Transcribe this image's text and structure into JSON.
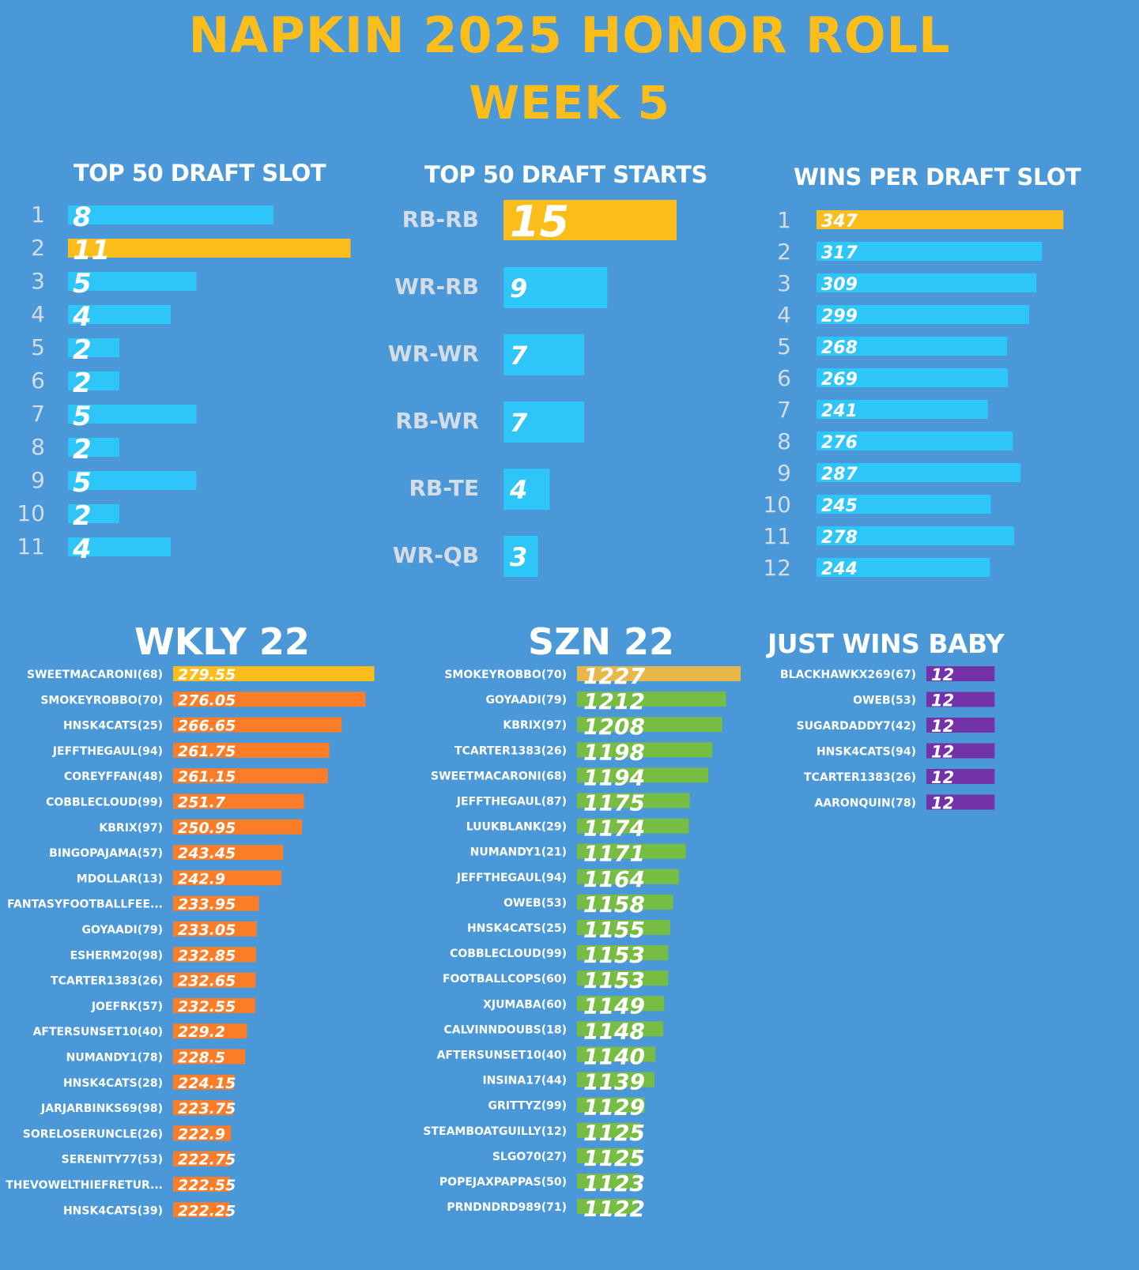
{
  "header": {
    "title": "NAPKIN 2025 HONOR ROLL",
    "week": "WEEK 5"
  },
  "colors": {
    "background": "#4a98d8",
    "gold": "#fbbd1a",
    "cyan": "#2ec5f8",
    "orange": "#fb7d28",
    "green": "#77bd44",
    "purple": "#7332a8",
    "sand": "#e9b84a"
  },
  "chart_data": [
    {
      "type": "bar",
      "title": "TOP 50 DRAFT SLOT",
      "categories": [
        "1",
        "2",
        "3",
        "4",
        "5",
        "6",
        "7",
        "8",
        "9",
        "10",
        "11"
      ],
      "values": [
        8,
        11,
        5,
        4,
        2,
        2,
        5,
        2,
        5,
        2,
        4
      ],
      "highlight_index": 1
    },
    {
      "type": "bar",
      "title": "TOP 50 DRAFT STARTS",
      "categories": [
        "RB-RB",
        "WR-RB",
        "WR-WR",
        "RB-WR",
        "RB-TE",
        "WR-QB"
      ],
      "values": [
        15,
        9,
        7,
        7,
        4,
        3
      ],
      "highlight_index": 0
    },
    {
      "type": "bar",
      "title": "WINS PER DRAFT SLOT",
      "categories": [
        "1",
        "2",
        "3",
        "4",
        "5",
        "6",
        "7",
        "8",
        "9",
        "10",
        "11",
        "12"
      ],
      "values": [
        347,
        317,
        309,
        299,
        268,
        269,
        241,
        276,
        287,
        245,
        278,
        244
      ],
      "highlight_index": 0
    },
    {
      "type": "bar",
      "title": "WKLY 22",
      "categories": [
        "SWEETMACARONI(68)",
        "SMOKEYROBBO(70)",
        "HNSK4CATS(25)",
        "JEFFTHEGAUL(94)",
        "COREYFFAN(48)",
        "COBBLECLOUD(99)",
        "KBRIX(97)",
        "BINGOPAJAMA(57)",
        "MDOLLAR(13)",
        "FANTASYFOOTBALLFEE...",
        "GOYAADI(79)",
        "ESHERM20(98)",
        "TCARTER1383(26)",
        "JOEFRK(57)",
        "AFTERSUNSET10(40)",
        "NUMANDY1(78)",
        "HNSK4CATS(28)",
        "JARJARBINKS69(98)",
        "SORELOSERUNCLE(26)",
        "SERENITY77(53)",
        "THEVOWELTHIEFRETUR...",
        "HNSK4CATS(39)"
      ],
      "labels": [
        "279.55",
        "276.05",
        "266.65",
        "261.75",
        "261.15",
        "251.7",
        "250.95",
        "243.45",
        "242.9",
        "233.95",
        "233.05",
        "232.85",
        "232.65",
        "232.55",
        "229.2",
        "228.5",
        "224.15",
        "223.75",
        "222.9",
        "222.75",
        "222.55",
        "222.25"
      ],
      "values": [
        279.55,
        276.05,
        266.65,
        261.75,
        261.15,
        251.7,
        250.95,
        243.45,
        242.9,
        233.95,
        233.05,
        232.85,
        232.65,
        232.55,
        229.2,
        228.5,
        224.15,
        223.75,
        222.9,
        222.75,
        222.55,
        222.25
      ],
      "highlight_index": 0
    },
    {
      "type": "bar",
      "title": "SZN 22",
      "categories": [
        "SMOKEYROBBO(70)",
        "GOYAADI(79)",
        "KBRIX(97)",
        "TCARTER1383(26)",
        "SWEETMACARONI(68)",
        "JEFFTHEGAUL(87)",
        "LUUKBLANK(29)",
        "NUMANDY1(21)",
        "JEFFTHEGAUL(94)",
        "OWEB(53)",
        "HNSK4CATS(25)",
        "COBBLECLOUD(99)",
        "FOOTBALLCOPS(60)",
        "XJUMABA(60)",
        "CALVINNDOUBS(18)",
        "AFTERSUNSET10(40)",
        "INSINA17(44)",
        "GRITTYZ(99)",
        "STEAMBOATGUILLY(12)",
        "SLGO70(27)",
        "POPEJAXPAPPAS(50)",
        "PRNDNDRD989(71)"
      ],
      "values": [
        1227,
        1212,
        1208,
        1198,
        1194,
        1175,
        1174,
        1171,
        1164,
        1158,
        1155,
        1153,
        1153,
        1149,
        1148,
        1140,
        1139,
        1129,
        1125,
        1125,
        1123,
        1122
      ],
      "highlight_index": 0
    },
    {
      "type": "bar",
      "title": "JUST WINS BABY",
      "categories": [
        "BLACKHAWKX269(67)",
        "OWEB(53)",
        "SUGARDADDY7(42)",
        "HNSK4CATS(94)",
        "TCARTER1383(26)",
        "AARONQUIN(78)"
      ],
      "values": [
        12,
        12,
        12,
        12,
        12,
        12
      ]
    }
  ]
}
